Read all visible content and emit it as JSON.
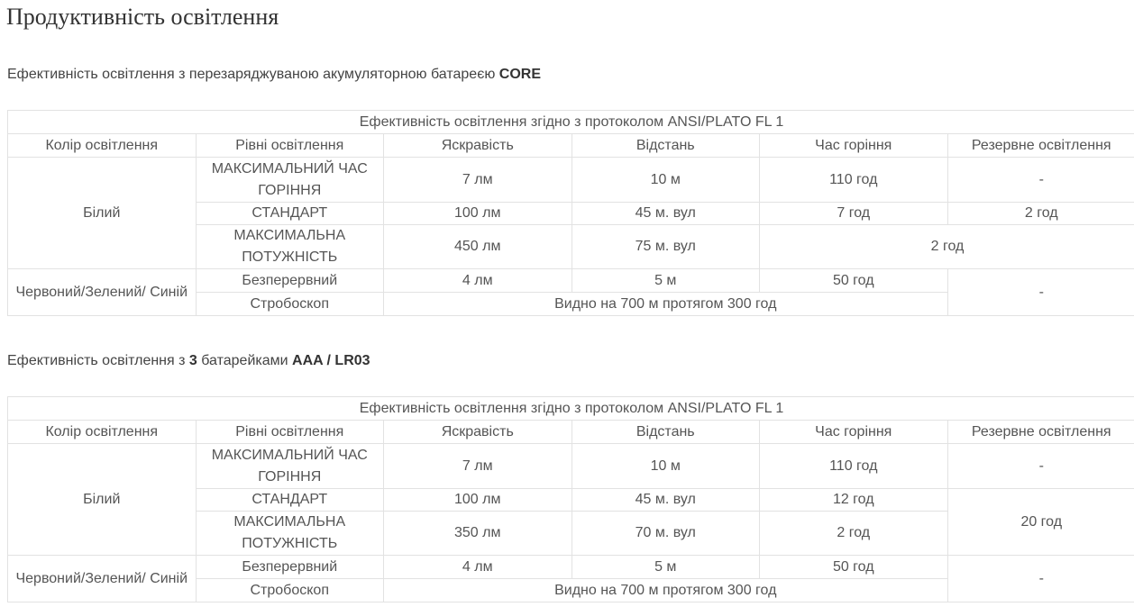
{
  "title": "Продуктивність освітлення",
  "sections": [
    {
      "subtitle_parts": [
        {
          "text": "Ефективність освітлення з перезаряджуваною акумуляторною батареєю ",
          "bold": false
        },
        {
          "text": "CORE",
          "bold": true
        }
      ],
      "rows": [
        [
          {
            "text": "Ефективність освітлення згідно з протоколом ANSI/PLATO FL 1",
            "colspan": 6
          }
        ],
        [
          {
            "text": "Колір освітлення"
          },
          {
            "text": "Рівні освітлення"
          },
          {
            "text": "Яскравість"
          },
          {
            "text": "Відстань"
          },
          {
            "text": "Час горіння"
          },
          {
            "text": "Резервне освітлення"
          }
        ],
        [
          {
            "text": "Білий",
            "rowspan": 3
          },
          {
            "text": "МАКСИМАЛЬНИЙ ЧАС ГОРІННЯ"
          },
          {
            "text": "7 лм"
          },
          {
            "text": "10 м"
          },
          {
            "text": "110 год"
          },
          {
            "text": "-"
          }
        ],
        [
          {
            "text": "СТАНДАРТ"
          },
          {
            "text": "100 лм"
          },
          {
            "text": "45 м. вул"
          },
          {
            "text": "7 год"
          },
          {
            "text": "2 год"
          }
        ],
        [
          {
            "text": "МАКСИМАЛЬНА ПОТУЖНІСТЬ"
          },
          {
            "text": "450 лм"
          },
          {
            "text": "75 м. вул"
          },
          {
            "text": "2 год",
            "colspan": 2
          }
        ],
        [
          {
            "text": "Червоний/Зелений/ Синій",
            "rowspan": 2
          },
          {
            "text": "Безперервний"
          },
          {
            "text": "4 лм"
          },
          {
            "text": "5 м"
          },
          {
            "text": "50 год"
          },
          {
            "text": "-",
            "rowspan": 2
          }
        ],
        [
          {
            "text": "Стробоскоп"
          },
          {
            "text": "Видно на 700 м протягом 300 год",
            "colspan": 3
          }
        ]
      ]
    },
    {
      "subtitle_parts": [
        {
          "text": "Ефективність освітлення з ",
          "bold": false
        },
        {
          "text": "3",
          "bold": true
        },
        {
          "text": " батарейками ",
          "bold": false
        },
        {
          "text": "AAA / LR03",
          "bold": true
        }
      ],
      "rows": [
        [
          {
            "text": "Ефективність освітлення згідно з протоколом ANSI/PLATO FL 1",
            "colspan": 6
          }
        ],
        [
          {
            "text": "Колір освітлення"
          },
          {
            "text": "Рівні освітлення"
          },
          {
            "text": "Яскравість"
          },
          {
            "text": "Відстань"
          },
          {
            "text": "Час горіння"
          },
          {
            "text": "Резервне освітлення"
          }
        ],
        [
          {
            "text": "Білий",
            "rowspan": 3
          },
          {
            "text": "МАКСИМАЛЬНИЙ ЧАС ГОРІННЯ"
          },
          {
            "text": "7 лм"
          },
          {
            "text": "10 м"
          },
          {
            "text": "110 год"
          },
          {
            "text": "-"
          }
        ],
        [
          {
            "text": "СТАНДАРТ"
          },
          {
            "text": "100 лм"
          },
          {
            "text": "45 м. вул"
          },
          {
            "text": "12 год"
          },
          {
            "text": "20 год",
            "rowspan": 2
          }
        ],
        [
          {
            "text": "МАКСИМАЛЬНА ПОТУЖНІСТЬ"
          },
          {
            "text": "350 лм"
          },
          {
            "text": "70 м. вул"
          },
          {
            "text": "2 год"
          }
        ],
        [
          {
            "text": "Червоний/Зелений/ Синій",
            "rowspan": 2
          },
          {
            "text": "Безперервний"
          },
          {
            "text": "4 лм"
          },
          {
            "text": "5 м"
          },
          {
            "text": "50 год"
          },
          {
            "text": "-",
            "rowspan": 2
          }
        ],
        [
          {
            "text": "Стробоскоп"
          },
          {
            "text": "Видно на 700 м протягом 300 год",
            "colspan": 3
          }
        ]
      ]
    }
  ]
}
